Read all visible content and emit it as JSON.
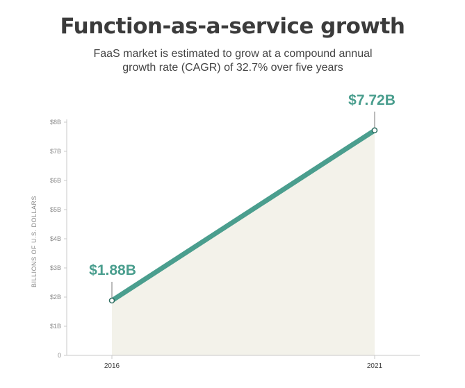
{
  "chart_data": {
    "type": "area",
    "title": "Function-as-a-service growth",
    "subtitle": "FaaS market is estimated to grow at a compound annual growth rate (CAGR) of 32.7% over five years",
    "ylabel": "BILLIONS OF U.S. DOLLARS",
    "xlabel": "",
    "categories": [
      "2016",
      "2021"
    ],
    "series": [
      {
        "values": [
          1.88,
          7.72
        ]
      }
    ],
    "data_labels": [
      "$1.88B",
      "$7.72B"
    ],
    "ylim": [
      0,
      8
    ],
    "y_ticks": [
      0,
      1,
      2,
      3,
      4,
      5,
      6,
      7,
      8
    ],
    "y_tick_labels": [
      "0",
      "$1B",
      "$2B",
      "$3B",
      "$4B",
      "$5B",
      "$6B",
      "$7B",
      "$8B"
    ],
    "grid": false,
    "colors": {
      "line": "#4a9e8e",
      "area": "#f3f2ea",
      "label": "#4a9e8e",
      "axis": "#c8c8c8"
    }
  }
}
